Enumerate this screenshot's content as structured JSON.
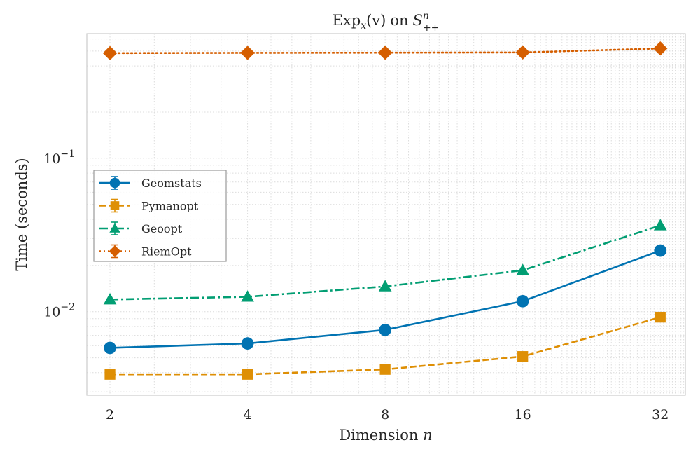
{
  "chart_data": {
    "type": "line",
    "title": {
      "main": "Exp",
      "sub_x": "x",
      "arg": "(v)",
      "on": "on",
      "space": "S",
      "sup_n": "n",
      "sub_pp": "++"
    },
    "xlabel": {
      "text": "Dimension",
      "var": "n"
    },
    "ylabel": "Time (seconds)",
    "x_scale": "log2",
    "y_scale": "log10",
    "x": [
      2,
      4,
      8,
      16,
      32
    ],
    "x_tick_labels": [
      "2",
      "4",
      "8",
      "16",
      "32"
    ],
    "y_tick_labels": [
      {
        "base": "10",
        "exp": "−2",
        "value": 0.01
      },
      {
        "base": "10",
        "exp": "−1",
        "value": 0.1
      }
    ],
    "xlim": [
      1.78,
      36.3
    ],
    "ylim": [
      0.00285,
      0.65
    ],
    "grid": true,
    "legend_position": "center-left",
    "series": [
      {
        "name": "Geomstats",
        "values": [
          0.0058,
          0.0062,
          0.0076,
          0.0117,
          0.025
        ],
        "color": "#0173b2",
        "marker": "circle",
        "dash": "solid"
      },
      {
        "name": "Pymanopt",
        "values": [
          0.0039,
          0.0039,
          0.0042,
          0.0051,
          0.0092
        ],
        "color": "#de8f05",
        "marker": "square",
        "dash": "dashed"
      },
      {
        "name": "Geoopt",
        "values": [
          0.012,
          0.0125,
          0.0146,
          0.0186,
          0.0365
        ],
        "color": "#029e73",
        "marker": "triangle",
        "dash": "dashdot"
      },
      {
        "name": "RiemOpt",
        "values": [
          0.485,
          0.487,
          0.488,
          0.49,
          0.52
        ],
        "color": "#d55e00",
        "marker": "diamond",
        "dash": "dotted"
      }
    ]
  }
}
